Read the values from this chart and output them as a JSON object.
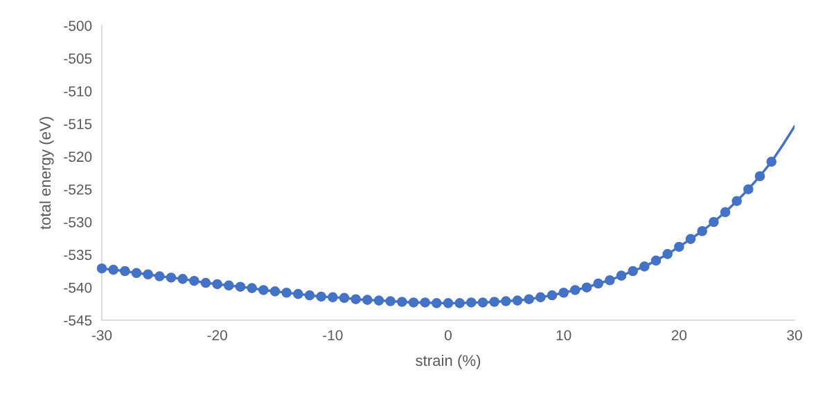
{
  "chart_data": {
    "type": "line",
    "xlabel": "strain (%)",
    "ylabel": "total energy (eV)",
    "xlim": [
      -30,
      30
    ],
    "xticks": [
      {
        "value": -30,
        "label": "-30"
      },
      {
        "value": -20,
        "label": "-20"
      },
      {
        "value": -10,
        "label": "-10"
      },
      0,
      10,
      20,
      30
    ],
    "ylim": [
      -545,
      -500
    ],
    "yticks": [
      {
        "value": -545,
        "label": "-545"
      },
      {
        "value": -540,
        "label": "-540"
      },
      {
        "value": -535,
        "label": "-535"
      },
      {
        "value": -530,
        "label": "-530"
      },
      {
        "value": -525,
        "label": "-525"
      },
      {
        "value": -520,
        "label": "-520"
      },
      {
        "value": -515,
        "label": "-515"
      },
      {
        "value": -510,
        "label": "-510"
      },
      {
        "value": -505,
        "label": "-505"
      },
      {
        "value": -500,
        "label": "-500"
      }
    ],
    "grid": false,
    "legend": false,
    "series": [
      {
        "marker": "none",
        "color": "#4472c4",
        "x": [
          -30,
          -29,
          -28,
          -27,
          -26,
          -25,
          -24,
          -23,
          -22,
          -21,
          -20,
          -19,
          -18,
          -17,
          -16,
          -15,
          -14,
          -13,
          -12,
          -11,
          -10,
          -9,
          -8,
          -7,
          -6,
          -5,
          -4,
          -3,
          -2,
          -1,
          0,
          1,
          2,
          3,
          4,
          5,
          6,
          7,
          8,
          9,
          10,
          11,
          12,
          13,
          14,
          15,
          16,
          17,
          18,
          19,
          20,
          21,
          22,
          23,
          24,
          25,
          26,
          27,
          28,
          29,
          30
        ],
        "values": [
          -537.1,
          -537.3,
          -537.5,
          -537.8,
          -538.0,
          -538.3,
          -538.5,
          -538.7,
          -539.0,
          -539.3,
          -539.5,
          -539.7,
          -539.9,
          -540.1,
          -540.4,
          -540.6,
          -540.8,
          -541.0,
          -541.2,
          -541.4,
          -541.5,
          -541.6,
          -541.8,
          -541.9,
          -542.0,
          -542.1,
          -542.2,
          -542.3,
          -542.3,
          -542.4,
          -542.4,
          -542.4,
          -542.3,
          -542.3,
          -542.2,
          -542.1,
          -542.0,
          -541.8,
          -541.5,
          -541.2,
          -540.8,
          -540.4,
          -540.0,
          -539.4,
          -538.9,
          -538.2,
          -537.5,
          -536.8,
          -535.9,
          -534.9,
          -533.8,
          -532.6,
          -531.4,
          -530.0,
          -528.5,
          -526.8,
          -525.0,
          -523.0,
          -520.8,
          -518.2,
          -515.4
        ]
      },
      {
        "type": "scatter",
        "marker": "circle",
        "color": "#4472c4",
        "x": [
          -30,
          -29,
          -28,
          -27,
          -26,
          -25,
          -24,
          -23,
          -22,
          -21,
          -20,
          -19,
          -18,
          -17,
          -16,
          -15,
          -14,
          -13,
          -12,
          -11,
          -10,
          -9,
          -8,
          -7,
          -6,
          -5,
          -4,
          -3,
          -2,
          -1,
          0,
          1,
          2,
          3,
          4,
          5,
          6,
          7,
          8,
          9,
          10,
          11,
          12,
          13,
          14,
          15,
          16,
          17,
          18,
          19,
          20,
          21,
          22,
          23,
          24,
          25,
          26,
          27,
          28
        ],
        "values": [
          -537.1,
          -537.3,
          -537.5,
          -537.8,
          -538.0,
          -538.3,
          -538.5,
          -538.7,
          -539.0,
          -539.3,
          -539.5,
          -539.7,
          -539.9,
          -540.1,
          -540.4,
          -540.6,
          -540.8,
          -541.0,
          -541.2,
          -541.4,
          -541.5,
          -541.6,
          -541.8,
          -541.9,
          -542.0,
          -542.1,
          -542.2,
          -542.3,
          -542.3,
          -542.4,
          -542.4,
          -542.4,
          -542.3,
          -542.3,
          -542.2,
          -542.1,
          -542.0,
          -541.8,
          -541.5,
          -541.2,
          -540.8,
          -540.4,
          -540.0,
          -539.4,
          -538.9,
          -538.2,
          -537.5,
          -536.8,
          -535.9,
          -534.9,
          -533.8,
          -532.6,
          -531.4,
          -530.0,
          -528.5,
          -526.8,
          -525.0,
          -523.0,
          -520.8
        ]
      }
    ]
  }
}
